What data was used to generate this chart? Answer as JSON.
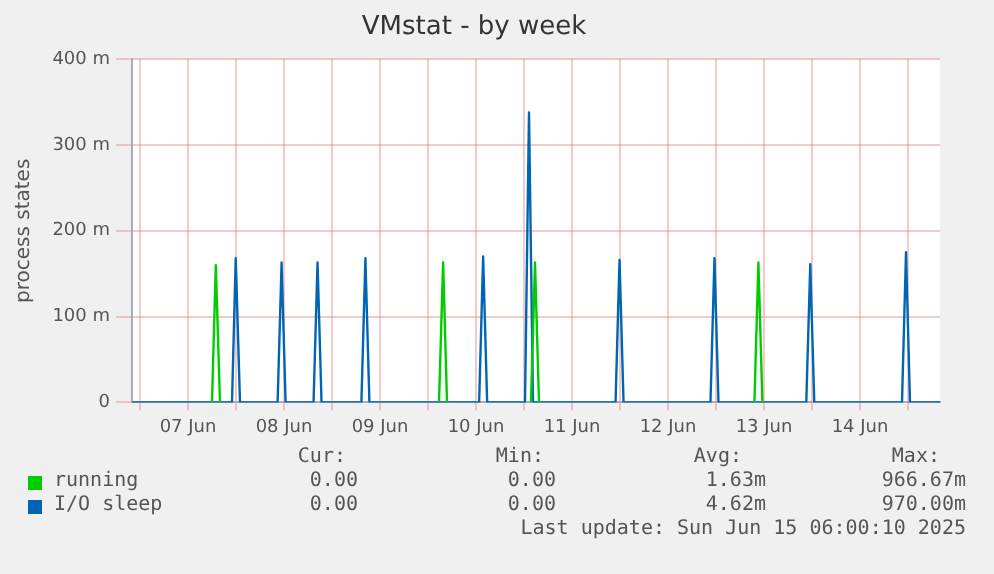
{
  "chart_data": {
    "type": "line",
    "title": "VMstat - by week",
    "ylabel": "process states",
    "series": [
      {
        "name": "running",
        "color": "#00cc00",
        "x": [
          "2025-06-07T18:00",
          "2025-06-07T18:57",
          "2025-06-07T20:00",
          "2025-06-08T00:00",
          "2025-06-10T02:45",
          "2025-06-10T03:47",
          "2025-06-10T04:45",
          "2025-06-10T06:00",
          "2025-06-11T01:45",
          "2025-06-11T02:45",
          "2025-06-11T03:45",
          "2025-06-11T06:00",
          "2025-06-13T09:36",
          "2025-06-13T10:36",
          "2025-06-13T11:36"
        ],
        "values": [
          0,
          160,
          0,
          null,
          0,
          163,
          0,
          null,
          0,
          163,
          0,
          null,
          0,
          163,
          0
        ]
      },
      {
        "name": "I/O sleep",
        "color": "#0066b3",
        "x": [
          "2025-06-06T22:00",
          "2025-06-07T23:00",
          "2025-06-07T23:56",
          "2025-06-08T01:00",
          "2025-06-08T10:24",
          "2025-06-08T11:24",
          "2025-06-08T12:24",
          "2025-06-08T19:23",
          "2025-06-08T20:23",
          "2025-06-08T21:23",
          "2025-06-09T07:21",
          "2025-06-09T08:21",
          "2025-06-09T09:21",
          "2025-06-10T12:47",
          "2025-06-10T13:47",
          "2025-06-10T14:47",
          "2025-06-11T00:15",
          "2025-06-11T01:15",
          "2025-06-11T02:15",
          "2025-06-11T22:53",
          "2025-06-11T23:53",
          "2025-06-12T00:53",
          "2025-06-12T22:37",
          "2025-06-12T23:37",
          "2025-06-13T00:37",
          "2025-06-13T22:34",
          "2025-06-13T23:34",
          "2025-06-14T00:34",
          "2025-06-14T22:30",
          "2025-06-14T23:30",
          "2025-06-15T00:30",
          "2025-06-15T08:00"
        ],
        "values": [
          0,
          0,
          168,
          0,
          0,
          163,
          0,
          0,
          163,
          0,
          0,
          168,
          0,
          0,
          170,
          0,
          0,
          338,
          0,
          0,
          166,
          0,
          0,
          168,
          0,
          0,
          161,
          0,
          0,
          175,
          0,
          0
        ]
      }
    ],
    "xlim": [
      "2025-06-06T22:00",
      "2025-06-15T08:00"
    ],
    "xticks": [
      {
        "value": "2025-06-07T00:00",
        "label": null
      },
      {
        "value": "2025-06-07T12:00",
        "label": "07 Jun"
      },
      {
        "value": "2025-06-08T00:00",
        "label": null
      },
      {
        "value": "2025-06-08T12:00",
        "label": "08 Jun"
      },
      {
        "value": "2025-06-09T00:00",
        "label": null
      },
      {
        "value": "2025-06-09T12:00",
        "label": "09 Jun"
      },
      {
        "value": "2025-06-10T00:00",
        "label": null
      },
      {
        "value": "2025-06-10T12:00",
        "label": "10 Jun"
      },
      {
        "value": "2025-06-11T00:00",
        "label": null
      },
      {
        "value": "2025-06-11T12:00",
        "label": "11 Jun"
      },
      {
        "value": "2025-06-12T00:00",
        "label": null
      },
      {
        "value": "2025-06-12T12:00",
        "label": "12 Jun"
      },
      {
        "value": "2025-06-13T00:00",
        "label": null
      },
      {
        "value": "2025-06-13T12:00",
        "label": "13 Jun"
      },
      {
        "value": "2025-06-14T00:00",
        "label": null
      },
      {
        "value": "2025-06-14T12:00",
        "label": "14 Jun"
      },
      {
        "value": "2025-06-15T00:00",
        "label": null
      }
    ],
    "ylim": [
      0,
      400
    ],
    "yticks": [
      0,
      {
        "value": 100,
        "label": "100 m"
      },
      {
        "value": 200,
        "label": "200 m"
      },
      {
        "value": 300,
        "label": "300 m"
      },
      {
        "value": 400,
        "label": "400 m"
      }
    ],
    "grid": true,
    "legend": "bottom",
    "marker": "none",
    "line_style": "solid",
    "annotations": [
      "Cur:",
      "Min:",
      "Avg:",
      "Max:",
      "0.00",
      "0.00",
      "1.63m",
      "966.67m",
      "0.00",
      "0.00",
      "4.62m",
      "970.00m",
      "Last update: Sun Jun 15 06:00:10 2025"
    ]
  }
}
